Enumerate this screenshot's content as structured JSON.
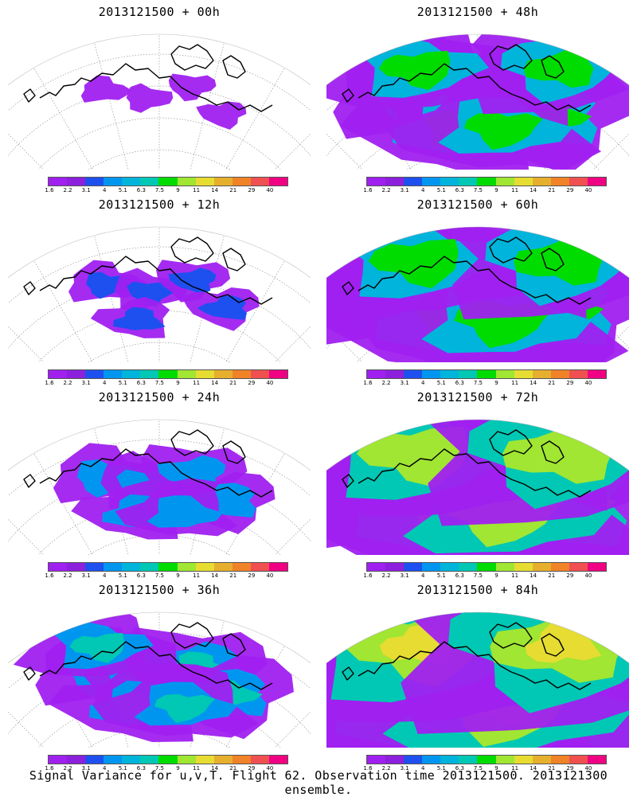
{
  "caption": "Signal Variance for u,v,T. Flight 62. Observation time 2013121500. 2013121300 ensemble.",
  "colorbar": {
    "colors": [
      "#a020f0",
      "#8c20dc",
      "#1e50f0",
      "#0096f0",
      "#00b4dc",
      "#00c8b4",
      "#00dc00",
      "#a0e632",
      "#e6dc32",
      "#e6af2d",
      "#f08228",
      "#f05050",
      "#f00082"
    ],
    "labels": [
      "1.6",
      "2.2",
      "3.1",
      "4",
      "5.1",
      "6.3",
      "7.5",
      "9",
      "11",
      "14",
      "21",
      "29",
      "40"
    ]
  },
  "panels": [
    {
      "title": "2013121500 + 00h",
      "intensity": 0
    },
    {
      "title": "2013121500 + 48h",
      "intensity": 4
    },
    {
      "title": "2013121500 + 12h",
      "intensity": 1
    },
    {
      "title": "2013121500 + 60h",
      "intensity": 5
    },
    {
      "title": "2013121500 + 24h",
      "intensity": 2
    },
    {
      "title": "2013121500 + 72h",
      "intensity": 6
    },
    {
      "title": "2013121500 + 36h",
      "intensity": 3
    },
    {
      "title": "2013121500 + 84h",
      "intensity": 7
    }
  ]
}
